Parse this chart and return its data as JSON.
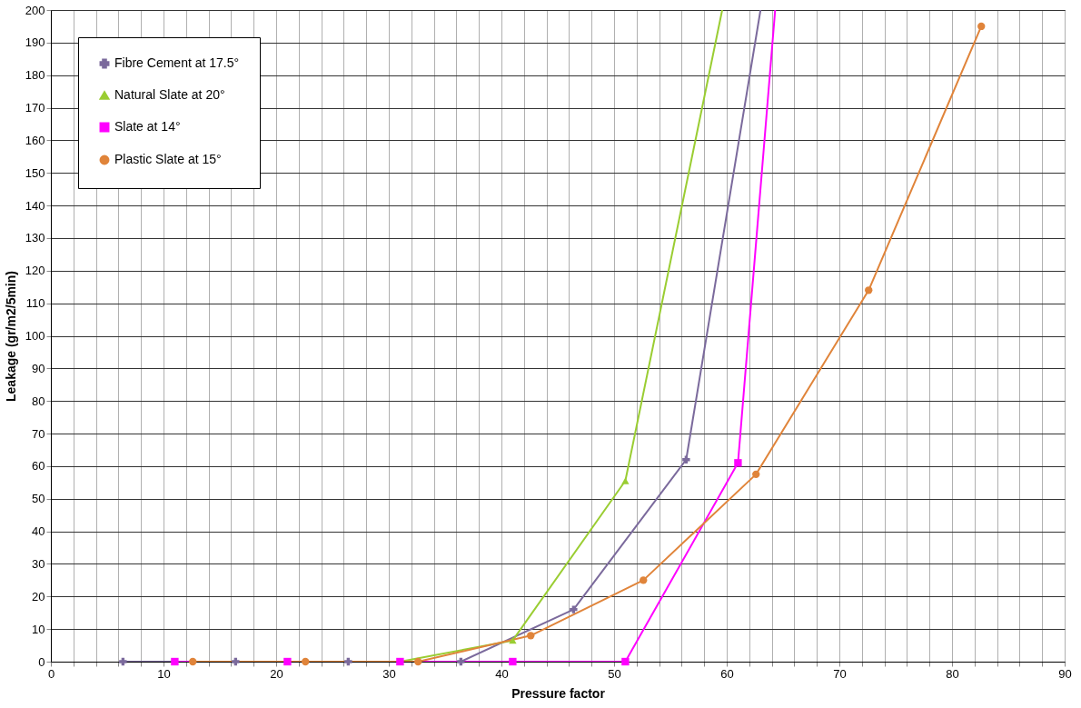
{
  "chart_data": {
    "type": "line",
    "xlabel": "Pressure factor",
    "ylabel": "Leakage (gr/m2/5min)",
    "xlim": [
      0,
      90
    ],
    "ylim": [
      0,
      200
    ],
    "xticks": [
      0,
      {
        "value": 2,
        "label": null
      },
      {
        "value": 4,
        "label": null
      },
      {
        "value": 6,
        "label": null
      },
      {
        "value": 8,
        "label": null
      },
      10,
      {
        "value": 12,
        "label": null
      },
      {
        "value": 14,
        "label": null
      },
      {
        "value": 16,
        "label": null
      },
      {
        "value": 18,
        "label": null
      },
      20,
      {
        "value": 22,
        "label": null
      },
      {
        "value": 24,
        "label": null
      },
      {
        "value": 26,
        "label": null
      },
      {
        "value": 28,
        "label": null
      },
      30,
      {
        "value": 32,
        "label": null
      },
      {
        "value": 34,
        "label": null
      },
      {
        "value": 36,
        "label": null
      },
      {
        "value": 38,
        "label": null
      },
      40,
      {
        "value": 42,
        "label": null
      },
      {
        "value": 44,
        "label": null
      },
      {
        "value": 46,
        "label": null
      },
      {
        "value": 48,
        "label": null
      },
      50,
      {
        "value": 52,
        "label": null
      },
      {
        "value": 54,
        "label": null
      },
      {
        "value": 56,
        "label": null
      },
      {
        "value": 58,
        "label": null
      },
      60,
      {
        "value": 62,
        "label": null
      },
      {
        "value": 64,
        "label": null
      },
      {
        "value": 66,
        "label": null
      },
      {
        "value": 68,
        "label": null
      },
      70,
      {
        "value": 72,
        "label": null
      },
      {
        "value": 74,
        "label": null
      },
      {
        "value": 76,
        "label": null
      },
      {
        "value": 78,
        "label": null
      },
      80,
      {
        "value": 82,
        "label": null
      },
      {
        "value": 84,
        "label": null
      },
      {
        "value": 86,
        "label": null
      },
      {
        "value": 88,
        "label": null
      },
      90
    ],
    "yticks": [
      0,
      10,
      20,
      30,
      40,
      50,
      60,
      70,
      80,
      90,
      100,
      110,
      120,
      130,
      140,
      150,
      160,
      170,
      180,
      190,
      200
    ],
    "grid": true,
    "legend": "top left",
    "series": [
      {
        "name": "Fibre Cement at 17.5°",
        "color": "#7b6a9c",
        "marker": "cross",
        "x": [
          6.4,
          16.4,
          26.4,
          36.4,
          46.4,
          56.4,
          63.0
        ],
        "values": [
          0,
          0,
          0,
          0,
          16,
          62,
          200
        ]
      },
      {
        "name": "Natural Slate at 20°",
        "color": "#9acd32",
        "marker": "triangle",
        "x": [
          31,
          41,
          51,
          59.6
        ],
        "values": [
          0,
          6.5,
          55.5,
          200
        ]
      },
      {
        "name": "Slate at 14°",
        "color": "#ff00ff",
        "marker": "square",
        "x": [
          11,
          21,
          31,
          41,
          51,
          61,
          64.3
        ],
        "values": [
          0,
          0,
          0,
          0,
          0,
          61,
          200
        ]
      },
      {
        "name": "Plastic Slate at 15°",
        "color": "#e0843a",
        "marker": "circle",
        "x": [
          12.6,
          22.6,
          32.6,
          42.6,
          52.6,
          62.6,
          72.6,
          82.6
        ],
        "values": [
          0,
          0,
          0,
          8,
          25,
          57.5,
          114,
          195
        ]
      }
    ]
  }
}
